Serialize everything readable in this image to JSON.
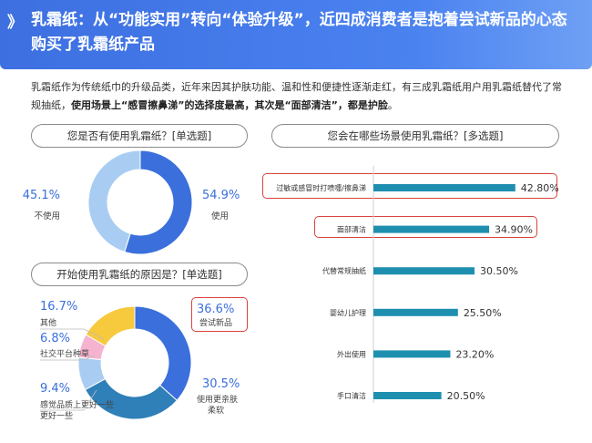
{
  "header": {
    "mark": "》",
    "title": "乳霜纸：从“功能实用”转向“体验升级”，近四成消费者是抱着尝试新品的心态购买了乳霜纸产品"
  },
  "intro": {
    "part1": "乳霜纸作为传统纸巾的升级品类，近年来因其护肤功能、温和性和便捷性逐渐走红，有三成乳霜纸用户用乳霜纸替代了常规抽纸，",
    "part2": "使用场景上“感冒擦鼻涕”的选择度最高，其次是“面部清洁”，都是护脸",
    "part3": "。"
  },
  "colors": {
    "blue_dark": "#3a6fdc",
    "blue_light": "#a9cdf2",
    "yellow": "#f7c93c",
    "pink": "#f6b3cf",
    "bar": "#1f8fb0",
    "highlight": "#d8433f"
  },
  "chart_data": [
    {
      "type": "pie",
      "title": "您是否有使用乳霜纸？[单选题]",
      "slices": [
        {
          "label": "使用",
          "value": 54.9,
          "value_label": "54.9%",
          "color": "#3a6fdc"
        },
        {
          "label": "不使用",
          "value": 45.1,
          "value_label": "45.1%",
          "color": "#a9cdf2"
        }
      ]
    },
    {
      "type": "pie",
      "title": "开始使用乳霜纸的原因是？[单选题]",
      "slices": [
        {
          "label": "尝试新品",
          "value": 36.6,
          "value_label": "36.6%",
          "color": "#3a6fdc"
        },
        {
          "label": "使用更亲肤柔软",
          "value": 30.5,
          "value_label": "30.5%",
          "color": "#2f7fb8"
        },
        {
          "label": "感觉品质上更好一些",
          "value": 9.4,
          "value_label": "9.4%",
          "color": "#a9cdf2"
        },
        {
          "label": "社交平台种草",
          "value": 6.8,
          "value_label": "6.8%",
          "color": "#f6b3cf"
        },
        {
          "label": "其他",
          "value": 16.7,
          "value_label": "16.7%",
          "color": "#f7c93c"
        }
      ]
    },
    {
      "type": "bar",
      "orientation": "horizontal",
      "title": "您会在哪些场景使用乳霜纸？[多选题]",
      "categories": [
        "过敏或感冒时打喷嚏/擦鼻涕",
        "面部清洁",
        "代替常规抽纸",
        "婴幼儿护理",
        "外出使用",
        "手口清洁"
      ],
      "values": [
        42.8,
        34.9,
        30.5,
        25.5,
        23.2,
        20.5
      ],
      "value_labels": [
        "42.80%",
        "34.90%",
        "30.50%",
        "25.50%",
        "23.20%",
        "20.50%"
      ],
      "highlighted": [
        true,
        true,
        false,
        false,
        false,
        false
      ],
      "xlim": [
        0,
        50
      ]
    }
  ]
}
